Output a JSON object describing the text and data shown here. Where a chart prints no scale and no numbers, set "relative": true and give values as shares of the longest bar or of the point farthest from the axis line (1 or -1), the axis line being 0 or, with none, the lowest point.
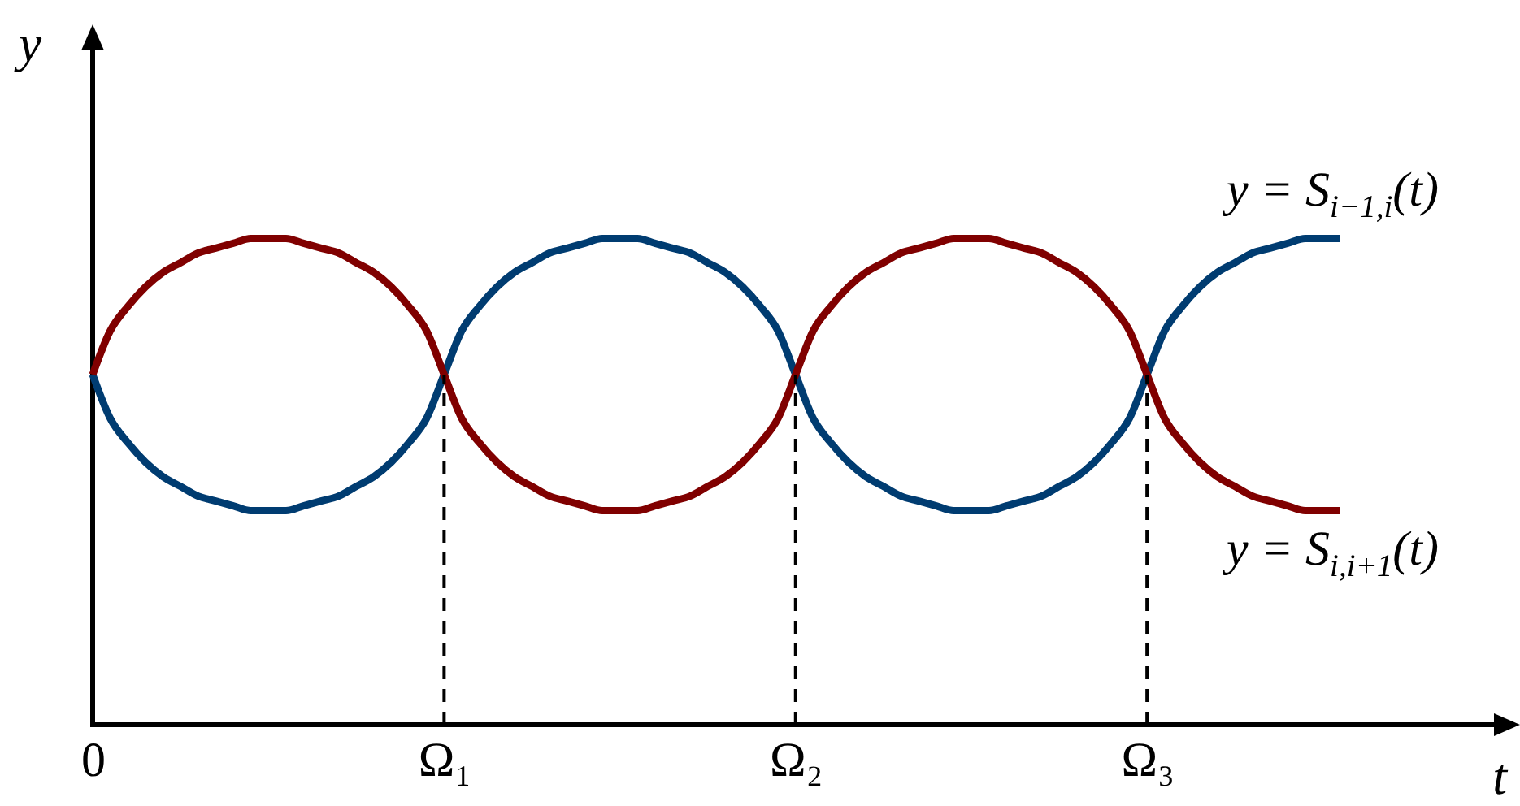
{
  "chart_data": {
    "type": "line",
    "relative": true,
    "xlabel": "t",
    "ylabel": "y",
    "categories": [
      "0",
      null,
      null,
      null,
      null,
      null,
      null,
      null,
      null,
      null,
      null,
      null,
      null,
      null,
      null,
      null,
      null,
      null,
      null,
      null,
      "Ω₁",
      null,
      null,
      null,
      null,
      null,
      null,
      null,
      null,
      null,
      null,
      null,
      null,
      null,
      null,
      null,
      null,
      null,
      null,
      null,
      "Ω₂",
      null,
      null,
      null,
      null,
      null,
      null,
      null,
      null,
      null,
      null,
      null,
      null,
      null,
      null,
      null,
      null,
      null,
      null,
      null,
      "Ω₃",
      null,
      null,
      null,
      null,
      null,
      null,
      null,
      null,
      null,
      null,
      null
    ],
    "series": [
      {
        "name": "y = S$_{i−1,i}$(t)",
        "color": "#003c71",
        "values": [
          0.72,
          0.63,
          0.58,
          0.54,
          0.51,
          0.49,
          0.47,
          0.46,
          0.45,
          0.44,
          0.44,
          0.44,
          0.45,
          0.46,
          0.47,
          0.49,
          0.51,
          0.54,
          0.58,
          0.63,
          0.72,
          0.81,
          0.86,
          0.9,
          0.93,
          0.95,
          0.97,
          0.98,
          0.99,
          1.0,
          1.0,
          1.0,
          0.99,
          0.98,
          0.97,
          0.95,
          0.93,
          0.9,
          0.86,
          0.81,
          0.72,
          0.63,
          0.58,
          0.54,
          0.51,
          0.49,
          0.47,
          0.46,
          0.45,
          0.44,
          0.44,
          0.44,
          0.45,
          0.46,
          0.47,
          0.49,
          0.51,
          0.54,
          0.58,
          0.63,
          0.72,
          0.81,
          0.86,
          0.9,
          0.93,
          0.95,
          0.97,
          0.98,
          0.99,
          1.0,
          1.0,
          1.0
        ]
      },
      {
        "name": "y = S$_{i,i+1}$(t)",
        "color": "#800000",
        "values": [
          0.72,
          0.81,
          0.86,
          0.9,
          0.93,
          0.95,
          0.97,
          0.98,
          0.99,
          1.0,
          1.0,
          1.0,
          0.99,
          0.98,
          0.97,
          0.95,
          0.93,
          0.9,
          0.86,
          0.81,
          0.72,
          0.63,
          0.58,
          0.54,
          0.51,
          0.49,
          0.47,
          0.46,
          0.45,
          0.44,
          0.44,
          0.44,
          0.45,
          0.46,
          0.47,
          0.49,
          0.51,
          0.54,
          0.58,
          0.63,
          0.72,
          0.81,
          0.86,
          0.9,
          0.93,
          0.95,
          0.97,
          0.98,
          0.99,
          1.0,
          1.0,
          1.0,
          0.99,
          0.98,
          0.97,
          0.95,
          0.93,
          0.9,
          0.86,
          0.81,
          0.72,
          0.63,
          0.58,
          0.54,
          0.51,
          0.49,
          0.47,
          0.46,
          0.45,
          0.44,
          0.44,
          0.44
        ]
      }
    ],
    "ref_lines": [
      {
        "axis": "x",
        "value": "Ω₁",
        "line_style": "dashed",
        "color": "#000000"
      },
      {
        "axis": "x",
        "value": "Ω₂",
        "line_style": "dashed",
        "color": "#000000"
      },
      {
        "axis": "x",
        "value": "Ω₃",
        "line_style": "dashed",
        "color": "#000000"
      }
    ]
  }
}
